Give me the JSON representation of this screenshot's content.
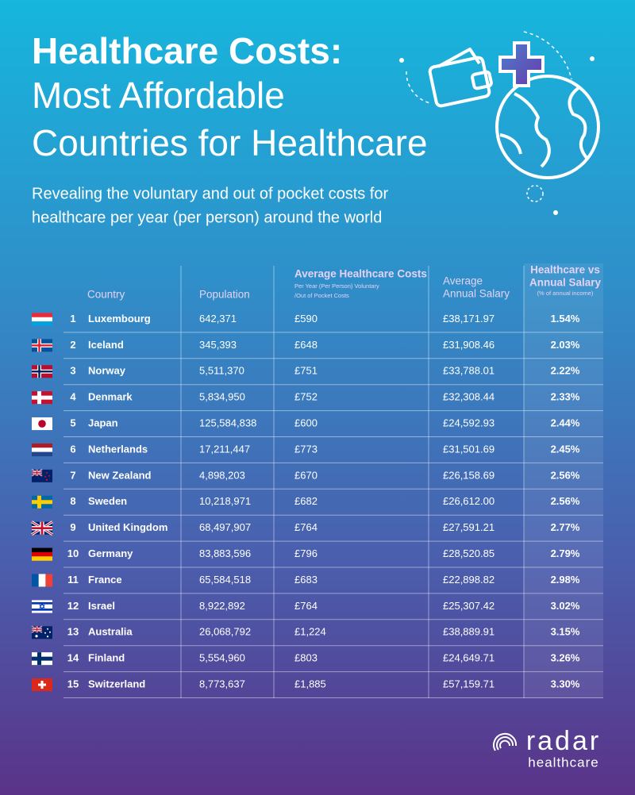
{
  "header": {
    "title": [
      "Healthcare Costs:",
      "Most Affordable",
      "Countries for Healthcare"
    ],
    "subtitle": [
      "Revealing the voluntary and out of pocket costs for",
      "healthcare per year (per person) around the world"
    ]
  },
  "table": {
    "columns": [
      {
        "lines": [
          "Country"
        ]
      },
      {
        "lines": [
          "Population"
        ]
      },
      {
        "lines": [
          "Average Healthcare Costs"
        ],
        "notes": [
          "Per Year (Per Person) Voluntary",
          "/Out of Pocket Costs"
        ]
      },
      {
        "lines": [
          "Average",
          "Annual Salary"
        ]
      },
      {
        "lines": [
          "Healthcare vs",
          "Annual Salary"
        ],
        "notes": [
          "(% of annual income)"
        ]
      }
    ],
    "rows": [
      [
        1,
        "Luxembourg",
        "642,371",
        "£590",
        "£38,171.97",
        "1.54%"
      ],
      [
        2,
        "Iceland",
        "345,393",
        "£648",
        "£31,908.46",
        "2.03%"
      ],
      [
        3,
        "Norway",
        "5,511,370",
        "£751",
        "£33,788.01",
        "2.22%"
      ],
      [
        4,
        "Denmark",
        "5,834,950",
        "£752",
        "£32,308.44",
        "2.33%"
      ],
      [
        5,
        "Japan",
        "125,584,838",
        "£600",
        "£24,592.93",
        "2.44%"
      ],
      [
        6,
        "Netherlands",
        "17,211,447",
        "£773",
        "£31,501.69",
        "2.45%"
      ],
      [
        7,
        "New Zealand",
        "4,898,203",
        "£670",
        "£26,158.69",
        "2.56%"
      ],
      [
        8,
        "Sweden",
        "10,218,971",
        "£682",
        "£26,612.00",
        "2.56%"
      ],
      [
        9,
        "United Kingdom",
        "68,497,907",
        "£764",
        "£27,591.21",
        "2.77%"
      ],
      [
        10,
        "Germany",
        "83,883,596",
        "£796",
        "£28,520.85",
        "2.79%"
      ],
      [
        11,
        "France",
        "65,584,518",
        "£683",
        "£22,898.82",
        "2.98%"
      ],
      [
        12,
        "Israel",
        "8,922,892",
        "£764",
        "£25,307.42",
        "3.02%"
      ],
      [
        13,
        "Australia",
        "26,068,792",
        "£1,224",
        "£38,889.91",
        "3.15%"
      ],
      [
        14,
        "Finland",
        "5,554,960",
        "£803",
        "£24,649.71",
        "3.26%"
      ],
      [
        15,
        "Switzerland",
        "8,773,637",
        "£1,885",
        "£57,159.71",
        "3.30%"
      ]
    ]
  },
  "logo": {
    "name": "radar",
    "tagline": "healthcare"
  }
}
